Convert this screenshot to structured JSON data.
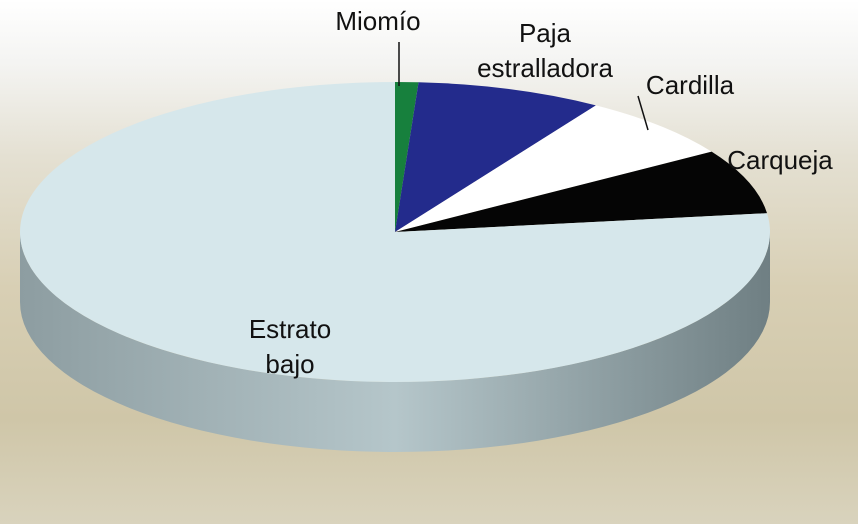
{
  "chart_data": {
    "type": "pie",
    "categories": [
      "Miomío",
      "Paja estralladora",
      "Cardilla",
      "Carqueja",
      "Estrato bajo"
    ],
    "values": [
      1,
      8,
      7,
      7,
      77
    ],
    "colors": [
      "#17803d",
      "#232b8c",
      "#ffffff",
      "#050505",
      "#d6e7eb"
    ]
  }
}
